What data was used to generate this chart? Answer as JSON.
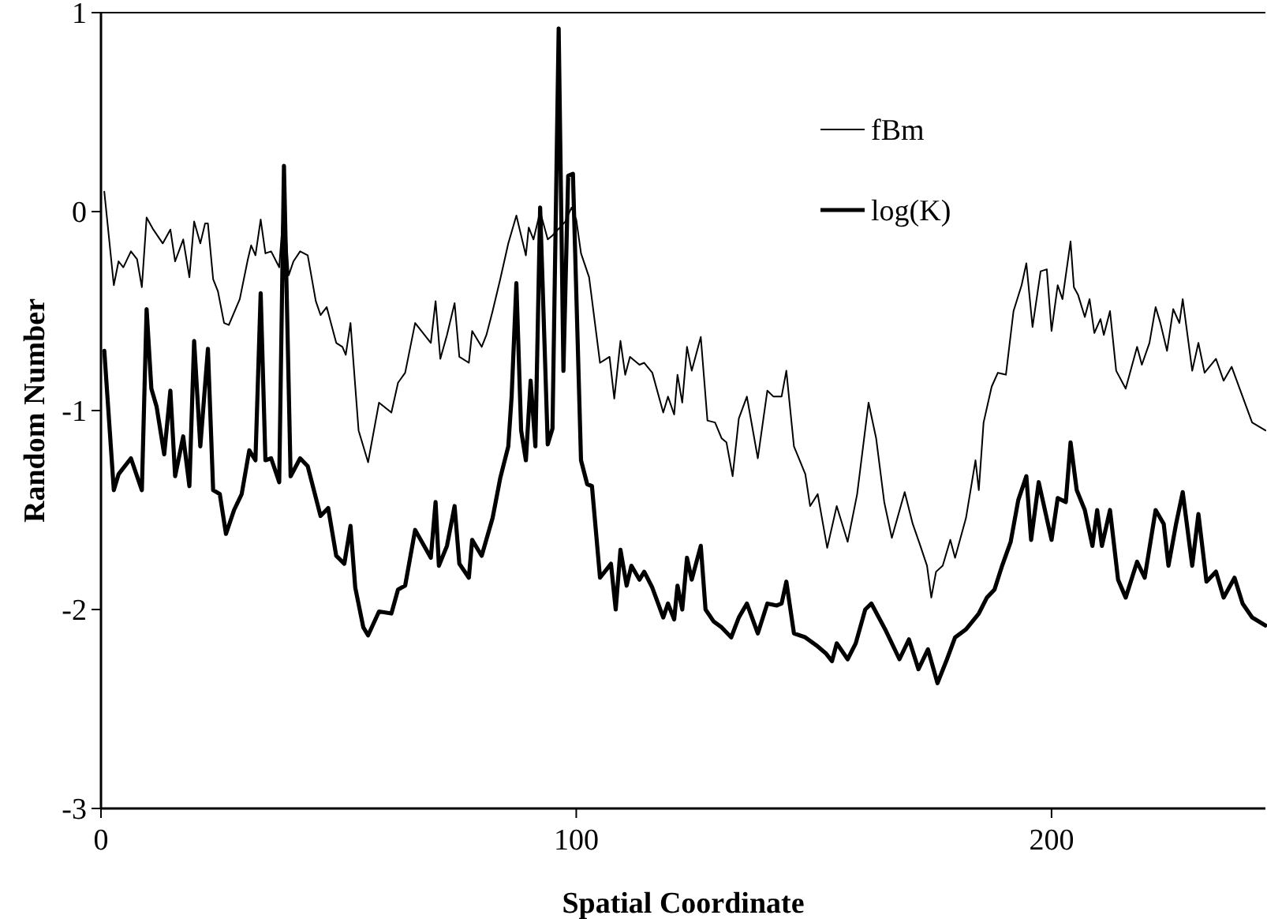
{
  "chart_data": {
    "type": "line",
    "xlabel": "Spatial Coordinate",
    "ylabel": "Random Number",
    "xlim": [
      0,
      245
    ],
    "xticks": [
      0,
      100,
      200
    ],
    "ylim": [
      -3,
      1
    ],
    "yticks": [
      -3,
      -2,
      -1,
      0,
      1
    ],
    "grid": false,
    "legend": "top right",
    "line_style": "solid",
    "series": [
      {
        "name": "fBm",
        "color": "#000000",
        "x": [
          0.7,
          2.7,
          3.7,
          4.7,
          6.3,
          7.6,
          8.6,
          9.6,
          11,
          13,
          14.6,
          15.6,
          17.3,
          18.6,
          19.6,
          20.9,
          21.9,
          22.5,
          23.6,
          24.6,
          25.9,
          26.9,
          29.2,
          30.9,
          31.6,
          32.5,
          33.6,
          34.6,
          35.8,
          37.5,
          38.5,
          39.5,
          40.5,
          41.9,
          43.5,
          45.2,
          46.2,
          47.5,
          48.5,
          49.5,
          50.8,
          51.5,
          52.5,
          54.2,
          56.2,
          58.5,
          61.1,
          62.5,
          64,
          66.1,
          69.4,
          70.4,
          71.4,
          72.8,
          74.4,
          75.4,
          77.4,
          78.1,
          80.1,
          81.1,
          82.4,
          84,
          85.7,
          87.4,
          89.4,
          90,
          91,
          92.4,
          94,
          95,
          97.7,
          99,
          100,
          101,
          102.7,
          105,
          107,
          108,
          109.3,
          110.3,
          111.3,
          113.3,
          114.3,
          116,
          118.3,
          119.3,
          120.6,
          121.3,
          122.3,
          123.3,
          124.3,
          126.2,
          127.6,
          129.2,
          130.6,
          131.6,
          132.9,
          134.2,
          135.9,
          138.2,
          140.2,
          141.5,
          143.2,
          144.2,
          145.8,
          148.2,
          149.2,
          150.8,
          152.8,
          154.8,
          157.1,
          159.1,
          161.5,
          163.1,
          164.8,
          166.4,
          169.1,
          170.8,
          172.4,
          173.8,
          174.7,
          175.7,
          177.1,
          178.7,
          179.7,
          182,
          184,
          184.7,
          185.7,
          187.4,
          188.7,
          190.4,
          192,
          193.7,
          194.7,
          196,
          197.7,
          199,
          200,
          201.3,
          202.3,
          204,
          204.7,
          205.6,
          207,
          208,
          209,
          210.3,
          211,
          212.3,
          213.6,
          215.6,
          218,
          219,
          220.6,
          221.9,
          222.9,
          224.3,
          225.6,
          226.9,
          227.6,
          229.6,
          230.9,
          232.2,
          234.6,
          236.2,
          237.9,
          240.2,
          242.2,
          245
        ],
        "values": [
          0.1,
          -0.37,
          -0.25,
          -0.28,
          -0.2,
          -0.24,
          -0.38,
          -0.03,
          -0.09,
          -0.16,
          -0.09,
          -0.25,
          -0.14,
          -0.33,
          -0.05,
          -0.16,
          -0.06,
          -0.06,
          -0.34,
          -0.4,
          -0.56,
          -0.57,
          -0.44,
          -0.24,
          -0.17,
          -0.22,
          -0.04,
          -0.21,
          -0.2,
          -0.28,
          0.04,
          -0.32,
          -0.25,
          -0.2,
          -0.22,
          -0.45,
          -0.52,
          -0.48,
          -0.57,
          -0.66,
          -0.68,
          -0.72,
          -0.56,
          -1.1,
          -1.26,
          -0.96,
          -1.01,
          -0.86,
          -0.81,
          -0.56,
          -0.66,
          -0.45,
          -0.74,
          -0.62,
          -0.46,
          -0.73,
          -0.76,
          -0.6,
          -0.68,
          -0.62,
          -0.5,
          -0.34,
          -0.16,
          -0.02,
          -0.22,
          -0.08,
          -0.14,
          0,
          -0.14,
          -0.12,
          -0.05,
          0.02,
          -0.04,
          -0.21,
          -0.33,
          -0.76,
          -0.73,
          -0.94,
          -0.65,
          -0.82,
          -0.73,
          -0.77,
          -0.76,
          -0.81,
          -1.01,
          -0.93,
          -1.02,
          -0.82,
          -0.96,
          -0.68,
          -0.8,
          -0.63,
          -1.05,
          -1.06,
          -1.14,
          -1.16,
          -1.33,
          -1.04,
          -0.93,
          -1.24,
          -0.9,
          -0.93,
          -0.93,
          -0.8,
          -1.18,
          -1.32,
          -1.48,
          -1.42,
          -1.69,
          -1.48,
          -1.66,
          -1.42,
          -0.96,
          -1.14,
          -1.46,
          -1.64,
          -1.41,
          -1.57,
          -1.68,
          -1.78,
          -1.94,
          -1.81,
          -1.78,
          -1.65,
          -1.74,
          -1.54,
          -1.25,
          -1.4,
          -1.06,
          -0.88,
          -0.81,
          -0.82,
          -0.5,
          -0.37,
          -0.26,
          -0.58,
          -0.3,
          -0.29,
          -0.6,
          -0.37,
          -0.44,
          -0.15,
          -0.38,
          -0.42,
          -0.53,
          -0.44,
          -0.61,
          -0.54,
          -0.62,
          -0.5,
          -0.8,
          -0.89,
          -0.68,
          -0.77,
          -0.66,
          -0.48,
          -0.56,
          -0.7,
          -0.49,
          -0.56,
          -0.44,
          -0.8,
          -0.66,
          -0.81,
          -0.74,
          -0.85,
          -0.78,
          -0.93,
          -1.06,
          -1.1
        ]
      },
      {
        "name": "log(K)",
        "color": "#000000",
        "x": [
          0.7,
          2.7,
          3.7,
          6.3,
          8.6,
          9.6,
          10.6,
          11.7,
          13.3,
          14.6,
          15.6,
          17.3,
          18.6,
          19.6,
          20.9,
          22.5,
          23.6,
          25,
          26.3,
          28,
          29.6,
          31.2,
          32.5,
          33.6,
          34.6,
          35.8,
          37.5,
          38.5,
          39.9,
          41.9,
          43.5,
          46.2,
          47.8,
          49.5,
          51.2,
          52.5,
          53.5,
          55.2,
          56.2,
          58.5,
          61.1,
          62.5,
          64,
          66.1,
          69.4,
          70.4,
          71.1,
          72.8,
          74.4,
          75.4,
          77.4,
          78.1,
          80.1,
          82.4,
          84,
          85.7,
          86.4,
          87.4,
          88.4,
          89.4,
          90.4,
          91.4,
          92.4,
          94,
          95,
          96.3,
          97.3,
          98.3,
          99.3,
          101,
          102.3,
          103.3,
          105,
          107.3,
          108.3,
          109.3,
          110.6,
          111.6,
          113.3,
          114.3,
          116,
          118.3,
          119.3,
          120.6,
          121.3,
          122.3,
          123.3,
          124.3,
          126.2,
          127.2,
          128.9,
          130.6,
          132.6,
          134.2,
          135.9,
          138.2,
          140.2,
          142.2,
          143.2,
          144.2,
          145.8,
          148.2,
          150.5,
          152.5,
          153.8,
          154.8,
          157.1,
          158.8,
          160.8,
          162.1,
          165,
          168,
          170,
          172,
          174,
          176,
          178,
          179.7,
          182,
          184.7,
          186.4,
          188,
          189.6,
          191.4,
          193,
          194.7,
          195.7,
          197.3,
          200,
          201.3,
          203,
          204,
          205.3,
          207,
          208.6,
          209.6,
          210.6,
          212.3,
          214,
          215.6,
          218,
          219.6,
          221.9,
          223.6,
          224.6,
          226.2,
          227.6,
          229.6,
          230.9,
          232.6,
          234.6,
          236.2,
          238.5,
          240.2,
          242.2,
          245
        ],
        "values": [
          -0.7,
          -1.4,
          -1.32,
          -1.24,
          -1.4,
          -0.49,
          -0.89,
          -0.98,
          -1.22,
          -0.9,
          -1.33,
          -1.13,
          -1.38,
          -0.65,
          -1.18,
          -0.69,
          -1.4,
          -1.42,
          -1.62,
          -1.5,
          -1.42,
          -1.2,
          -1.25,
          -0.41,
          -1.25,
          -1.24,
          -1.36,
          0.23,
          -1.33,
          -1.24,
          -1.28,
          -1.53,
          -1.49,
          -1.73,
          -1.77,
          -1.58,
          -1.89,
          -2.09,
          -2.13,
          -2.01,
          -2.02,
          -1.9,
          -1.88,
          -1.6,
          -1.74,
          -1.46,
          -1.78,
          -1.68,
          -1.48,
          -1.77,
          -1.84,
          -1.65,
          -1.73,
          -1.54,
          -1.34,
          -1.18,
          -0.93,
          -0.36,
          -1.1,
          -1.25,
          -0.85,
          -1.18,
          0.02,
          -1.17,
          -1.09,
          0.92,
          -0.8,
          0.18,
          0.19,
          -1.25,
          -1.37,
          -1.38,
          -1.84,
          -1.77,
          -2,
          -1.7,
          -1.88,
          -1.78,
          -1.85,
          -1.81,
          -1.89,
          -2.04,
          -1.97,
          -2.05,
          -1.88,
          -2,
          -1.74,
          -1.85,
          -1.68,
          -2,
          -2.06,
          -2.09,
          -2.14,
          -2.04,
          -1.97,
          -2.12,
          -1.97,
          -1.98,
          -1.97,
          -1.86,
          -2.12,
          -2.14,
          -2.18,
          -2.22,
          -2.26,
          -2.17,
          -2.25,
          -2.17,
          -2,
          -1.97,
          -2.1,
          -2.25,
          -2.15,
          -2.3,
          -2.2,
          -2.37,
          -2.25,
          -2.14,
          -2.1,
          -2.02,
          -1.94,
          -1.9,
          -1.78,
          -1.66,
          -1.45,
          -1.33,
          -1.65,
          -1.36,
          -1.65,
          -1.44,
          -1.46,
          -1.16,
          -1.4,
          -1.5,
          -1.68,
          -1.5,
          -1.68,
          -1.5,
          -1.85,
          -1.94,
          -1.76,
          -1.84,
          -1.5,
          -1.57,
          -1.78,
          -1.57,
          -1.41,
          -1.78,
          -1.52,
          -1.86,
          -1.81,
          -1.94,
          -1.84,
          -1.97,
          -2.04,
          -2.08
        ]
      }
    ]
  }
}
